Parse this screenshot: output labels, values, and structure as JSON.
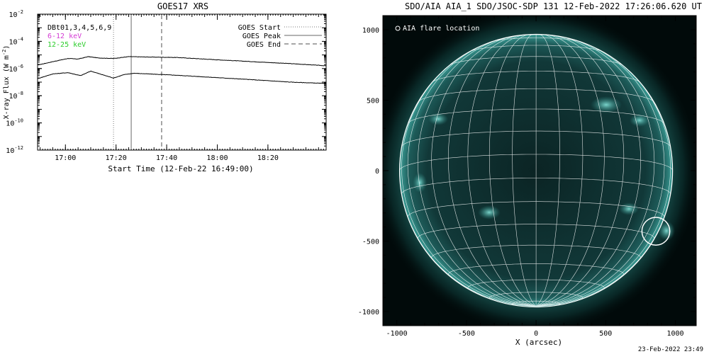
{
  "footer_timestamp": "23-Feb-2022 23:49",
  "chart_data": [
    {
      "type": "line",
      "title": "GOES17 XRS",
      "xlabel": "Start Time (12-Feb-22 16:49:00)",
      "ylabel": "X-ray Flux (W m",
      "ylabel_sup": "-2",
      "ylabel_close": ")",
      "x_unit": "minutes after 16:49:00",
      "xlim": [
        0,
        114
      ],
      "y_scale": "log",
      "ylim": [
        1e-12,
        0.01
      ],
      "x_ticks": [
        {
          "label": "17:00",
          "x": 11
        },
        {
          "label": "17:20",
          "x": 31
        },
        {
          "label": "17:40",
          "x": 51
        },
        {
          "label": "18:00",
          "x": 71
        },
        {
          "label": "18:20",
          "x": 91
        }
      ],
      "y_ticks": [
        {
          "base": "10",
          "exp": "-2",
          "value": 0.01
        },
        {
          "base": "10",
          "exp": "-4",
          "value": 0.0001
        },
        {
          "base": "10",
          "exp": "-6",
          "value": 1e-06
        },
        {
          "base": "10",
          "exp": "-8",
          "value": 1e-08
        },
        {
          "base": "10",
          "exp": "-10",
          "value": 1e-10
        },
        {
          "base": "10",
          "exp": "-12",
          "value": 1e-12
        }
      ],
      "legend_left": {
        "channels": "DBt01,3,4,5,6,9",
        "low": "6-12 keV",
        "high": "12-25 keV"
      },
      "legend_right": [
        {
          "label": "GOES Start",
          "style": "dotted"
        },
        {
          "label": "GOES Peak",
          "style": "solid"
        },
        {
          "label": "GOES End",
          "style": "dashed"
        }
      ],
      "markers": {
        "start": 30,
        "peak": 37,
        "end": 49
      },
      "series": [
        {
          "name": "6-12 keV",
          "color": "#000000",
          "points": [
            [
              0,
              1.8e-06
            ],
            [
              6,
              3.2e-06
            ],
            [
              12,
              5.5e-06
            ],
            [
              16,
              5e-06
            ],
            [
              20,
              7.5e-06
            ],
            [
              24,
              6e-06
            ],
            [
              30,
              5.5e-06
            ],
            [
              36,
              7.5e-06
            ],
            [
              44,
              7e-06
            ],
            [
              55,
              6.5e-06
            ],
            [
              70,
              4.5e-06
            ],
            [
              85,
              3.2e-06
            ],
            [
              100,
              2.3e-06
            ],
            [
              114,
              1.6e-06
            ]
          ]
        },
        {
          "name": "12-25 keV",
          "color": "#000000",
          "points": [
            [
              0,
              1.8e-07
            ],
            [
              6,
              4e-07
            ],
            [
              12,
              5e-07
            ],
            [
              17,
              3e-07
            ],
            [
              21,
              6.5e-07
            ],
            [
              25,
              3.8e-07
            ],
            [
              30,
              2e-07
            ],
            [
              34,
              3.5e-07
            ],
            [
              38,
              4.5e-07
            ],
            [
              44,
              4e-07
            ],
            [
              55,
              3.2e-07
            ],
            [
              70,
              2.2e-07
            ],
            [
              85,
              1.5e-07
            ],
            [
              100,
              1e-07
            ],
            [
              114,
              8e-08
            ]
          ]
        }
      ]
    },
    {
      "type": "image",
      "title": "SDO/AIA AIA_1 SDO/JSOC-SDP 131 12-Feb-2022 17:26:06.620 UT",
      "xlabel": "X (arcsec)",
      "xlim": [
        -1100,
        1150
      ],
      "ylim": [
        -1100,
        1100
      ],
      "x_ticks": [
        -1000,
        -500,
        0,
        500,
        1000
      ],
      "y_ticks": [
        1000,
        500,
        0,
        -500,
        -1000
      ],
      "legend": "AIA flare location",
      "solar_radius_arcsec": 980,
      "flare_location": {
        "x": 860,
        "y": -430,
        "r": 100
      },
      "colors": {
        "background": "#010a0a",
        "disk": "#0f3535",
        "limb": "#4fcfc4",
        "grid": "#ffffff"
      }
    }
  ]
}
